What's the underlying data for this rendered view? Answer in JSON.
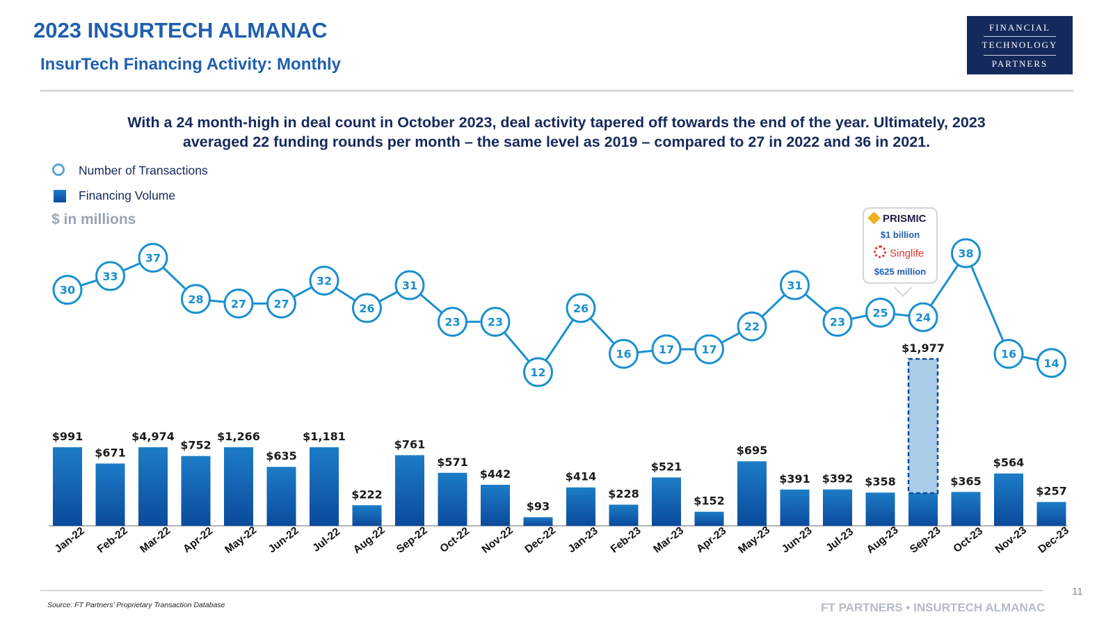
{
  "header": {
    "title": "2023 INSURTECH ALMANAC",
    "subtitle": "InsurTech Financing Activity: Monthly",
    "logo": [
      "FINANCIAL",
      "TECHNOLOGY",
      "PARTNERS"
    ]
  },
  "headline": {
    "line1": "With a 24 month-high in deal count in October 2023, deal activity tapered off towards the end of the year. Ultimately, 2023",
    "line2": "averaged 22 funding rounds per month – the same level as 2019 – compared to 27 in 2022 and 36 in 2021."
  },
  "legend": {
    "transactions": "Number of Transactions",
    "volume": "Financing Volume",
    "units": "$ in millions"
  },
  "callout": {
    "company1": "PRISMIC",
    "amount1": "$1 billion",
    "company2": "Singlife",
    "amount2": "$625 million"
  },
  "chart_data": {
    "type": "bar+line",
    "categories": [
      "Jan-22",
      "Feb-22",
      "Mar-22",
      "Apr-22",
      "May-22",
      "Jun-22",
      "Jul-22",
      "Aug-22",
      "Sep-22",
      "Oct-22",
      "Nov-22",
      "Dec-22",
      "Jan-23",
      "Feb-23",
      "Mar-23",
      "Apr-23",
      "May-23",
      "Jun-23",
      "Jul-23",
      "Aug-23",
      "Sep-23",
      "Oct-23",
      "Nov-23",
      "Dec-23"
    ],
    "series": [
      {
        "name": "Financing Volume",
        "type": "bar",
        "values": [
          991,
          671,
          4974,
          752,
          1266,
          635,
          1181,
          222,
          761,
          571,
          442,
          93,
          414,
          228,
          521,
          152,
          695,
          391,
          392,
          358,
          1977,
          365,
          564,
          257
        ],
        "labels": [
          "$991",
          "$671",
          "$4,974",
          "$752",
          "$1,266",
          "$635",
          "$1,181",
          "$222",
          "$761",
          "$571",
          "$442",
          "$93",
          "$414",
          "$228",
          "$521",
          "$152",
          "$695",
          "$391",
          "$392",
          "$358",
          "$1,977",
          "$365",
          "$564",
          "$257"
        ],
        "highlight_index": 20,
        "highlight_base_value": 352
      },
      {
        "name": "Number of Transactions",
        "type": "line",
        "values": [
          30,
          33,
          37,
          28,
          27,
          27,
          32,
          26,
          31,
          23,
          23,
          12,
          26,
          16,
          17,
          17,
          22,
          31,
          23,
          25,
          24,
          38,
          16,
          14
        ]
      }
    ],
    "colors": {
      "bar_top": "#1d7cc6",
      "bar_bottom": "#0b4a9c",
      "line": "#1a8fcf",
      "highlight": "#aacde9",
      "axis": "#9a9a9a"
    }
  },
  "footer": {
    "source": "Source: FT Partners’ Proprietary Transaction Database",
    "brand": "FT PARTNERS • INSURTECH ALMANAC",
    "page": "11"
  }
}
